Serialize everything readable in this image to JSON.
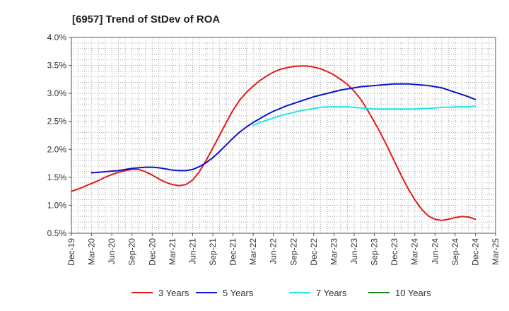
{
  "chart_data": {
    "type": "line",
    "title": "[6957]  Trend of StDev of ROA",
    "xlabel": "",
    "ylabel": "",
    "x_ticks": [
      "Dec-19",
      "Mar-20",
      "Jun-20",
      "Sep-20",
      "Dec-20",
      "Mar-21",
      "Jun-21",
      "Sep-21",
      "Dec-21",
      "Mar-22",
      "Jun-22",
      "Sep-22",
      "Dec-22",
      "Mar-23",
      "Jun-23",
      "Sep-23",
      "Dec-23",
      "Mar-24",
      "Jun-24",
      "Sep-24",
      "Dec-24",
      "Mar-25"
    ],
    "y_ticks": [
      "0.5%",
      "1.0%",
      "1.5%",
      "2.0%",
      "2.5%",
      "3.0%",
      "3.5%",
      "4.0%"
    ],
    "ylim": [
      0.5,
      4.0
    ],
    "grid": true,
    "legend_position": "bottom",
    "series": [
      {
        "name": "3 Years",
        "color": "#e31a1c",
        "points": [
          [
            "Dec-19",
            1.25
          ],
          [
            "Jan-20",
            1.29
          ],
          [
            "Feb-20",
            1.34
          ],
          [
            "Mar-20",
            1.39
          ],
          [
            "Apr-20",
            1.44
          ],
          [
            "May-20",
            1.5
          ],
          [
            "Jun-20",
            1.55
          ],
          [
            "Jul-20",
            1.59
          ],
          [
            "Aug-20",
            1.62
          ],
          [
            "Sep-20",
            1.64
          ],
          [
            "Oct-20",
            1.64
          ],
          [
            "Nov-20",
            1.6
          ],
          [
            "Dec-20",
            1.54
          ],
          [
            "Jan-21",
            1.47
          ],
          [
            "Feb-21",
            1.41
          ],
          [
            "Mar-21",
            1.37
          ],
          [
            "Apr-21",
            1.35
          ],
          [
            "May-21",
            1.37
          ],
          [
            "Jun-21",
            1.45
          ],
          [
            "Jul-21",
            1.6
          ],
          [
            "Aug-21",
            1.8
          ],
          [
            "Sep-21",
            2.02
          ],
          [
            "Oct-21",
            2.25
          ],
          [
            "Nov-21",
            2.48
          ],
          [
            "Dec-21",
            2.7
          ],
          [
            "Jan-22",
            2.88
          ],
          [
            "Feb-22",
            3.02
          ],
          [
            "Mar-22",
            3.13
          ],
          [
            "Apr-22",
            3.23
          ],
          [
            "May-22",
            3.31
          ],
          [
            "Jun-22",
            3.38
          ],
          [
            "Jul-22",
            3.43
          ],
          [
            "Aug-22",
            3.46
          ],
          [
            "Sep-22",
            3.48
          ],
          [
            "Oct-22",
            3.49
          ],
          [
            "Nov-22",
            3.49
          ],
          [
            "Dec-22",
            3.47
          ],
          [
            "Jan-23",
            3.44
          ],
          [
            "Feb-23",
            3.39
          ],
          [
            "Mar-23",
            3.33
          ],
          [
            "Apr-23",
            3.25
          ],
          [
            "May-23",
            3.16
          ],
          [
            "Jun-23",
            3.04
          ],
          [
            "Jul-23",
            2.89
          ],
          [
            "Aug-23",
            2.7
          ],
          [
            "Sep-23",
            2.49
          ],
          [
            "Oct-23",
            2.27
          ],
          [
            "Nov-23",
            2.03
          ],
          [
            "Dec-23",
            1.78
          ],
          [
            "Jan-24",
            1.53
          ],
          [
            "Feb-24",
            1.3
          ],
          [
            "Mar-24",
            1.1
          ],
          [
            "Apr-24",
            0.93
          ],
          [
            "May-24",
            0.81
          ],
          [
            "Jun-24",
            0.75
          ],
          [
            "Jul-24",
            0.73
          ],
          [
            "Aug-24",
            0.75
          ],
          [
            "Sep-24",
            0.78
          ],
          [
            "Oct-24",
            0.8
          ],
          [
            "Nov-24",
            0.79
          ],
          [
            "Dec-24",
            0.75
          ]
        ]
      },
      {
        "name": "5 Years",
        "color": "#0a14c8",
        "points": [
          [
            "Mar-20",
            1.58
          ],
          [
            "Apr-20",
            1.59
          ],
          [
            "May-20",
            1.6
          ],
          [
            "Jun-20",
            1.61
          ],
          [
            "Jul-20",
            1.62
          ],
          [
            "Aug-20",
            1.64
          ],
          [
            "Sep-20",
            1.66
          ],
          [
            "Oct-20",
            1.67
          ],
          [
            "Nov-20",
            1.68
          ],
          [
            "Dec-20",
            1.68
          ],
          [
            "Jan-21",
            1.67
          ],
          [
            "Feb-21",
            1.65
          ],
          [
            "Mar-21",
            1.63
          ],
          [
            "Apr-21",
            1.62
          ],
          [
            "May-21",
            1.62
          ],
          [
            "Jun-21",
            1.64
          ],
          [
            "Jul-21",
            1.69
          ],
          [
            "Aug-21",
            1.76
          ],
          [
            "Sep-21",
            1.85
          ],
          [
            "Oct-21",
            1.96
          ],
          [
            "Nov-21",
            2.08
          ],
          [
            "Dec-21",
            2.2
          ],
          [
            "Jan-22",
            2.31
          ],
          [
            "Feb-22",
            2.4
          ],
          [
            "Mar-22",
            2.48
          ],
          [
            "Apr-22",
            2.55
          ],
          [
            "May-22",
            2.62
          ],
          [
            "Jun-22",
            2.68
          ],
          [
            "Jul-22",
            2.73
          ],
          [
            "Aug-22",
            2.78
          ],
          [
            "Sep-22",
            2.82
          ],
          [
            "Oct-22",
            2.86
          ],
          [
            "Nov-22",
            2.9
          ],
          [
            "Dec-22",
            2.94
          ],
          [
            "Jan-23",
            2.97
          ],
          [
            "Feb-23",
            3.0
          ],
          [
            "Mar-23",
            3.03
          ],
          [
            "Apr-23",
            3.06
          ],
          [
            "May-23",
            3.08
          ],
          [
            "Jun-23",
            3.1
          ],
          [
            "Jul-23",
            3.12
          ],
          [
            "Aug-23",
            3.13
          ],
          [
            "Sep-23",
            3.14
          ],
          [
            "Oct-23",
            3.15
          ],
          [
            "Nov-23",
            3.16
          ],
          [
            "Dec-23",
            3.17
          ],
          [
            "Jan-24",
            3.17
          ],
          [
            "Feb-24",
            3.17
          ],
          [
            "Mar-24",
            3.16
          ],
          [
            "Apr-24",
            3.15
          ],
          [
            "May-24",
            3.14
          ],
          [
            "Jun-24",
            3.12
          ],
          [
            "Jul-24",
            3.1
          ],
          [
            "Aug-24",
            3.06
          ],
          [
            "Sep-24",
            3.02
          ],
          [
            "Oct-24",
            2.98
          ],
          [
            "Nov-24",
            2.94
          ],
          [
            "Dec-24",
            2.89
          ]
        ]
      },
      {
        "name": "7 Years",
        "color": "#1ee6e6",
        "points": [
          [
            "Mar-22",
            2.43
          ],
          [
            "Apr-22",
            2.48
          ],
          [
            "May-22",
            2.52
          ],
          [
            "Jun-22",
            2.56
          ],
          [
            "Jul-22",
            2.6
          ],
          [
            "Aug-22",
            2.63
          ],
          [
            "Sep-22",
            2.66
          ],
          [
            "Oct-22",
            2.69
          ],
          [
            "Nov-22",
            2.71
          ],
          [
            "Dec-22",
            2.73
          ],
          [
            "Jan-23",
            2.75
          ],
          [
            "Feb-23",
            2.76
          ],
          [
            "Mar-23",
            2.76
          ],
          [
            "Apr-23",
            2.76
          ],
          [
            "May-23",
            2.76
          ],
          [
            "Jun-23",
            2.75
          ],
          [
            "Jul-23",
            2.74
          ],
          [
            "Aug-23",
            2.73
          ],
          [
            "Sep-23",
            2.72
          ],
          [
            "Oct-23",
            2.72
          ],
          [
            "Nov-23",
            2.72
          ],
          [
            "Dec-23",
            2.72
          ],
          [
            "Jan-24",
            2.72
          ],
          [
            "Feb-24",
            2.72
          ],
          [
            "Mar-24",
            2.72
          ],
          [
            "Apr-24",
            2.73
          ],
          [
            "May-24",
            2.73
          ],
          [
            "Jun-24",
            2.74
          ],
          [
            "Jul-24",
            2.75
          ],
          [
            "Aug-24",
            2.75
          ],
          [
            "Sep-24",
            2.76
          ],
          [
            "Oct-24",
            2.76
          ],
          [
            "Nov-24",
            2.76
          ],
          [
            "Dec-24",
            2.77
          ]
        ]
      },
      {
        "name": "10 Years",
        "color": "#1a8a1a",
        "points": []
      }
    ]
  }
}
